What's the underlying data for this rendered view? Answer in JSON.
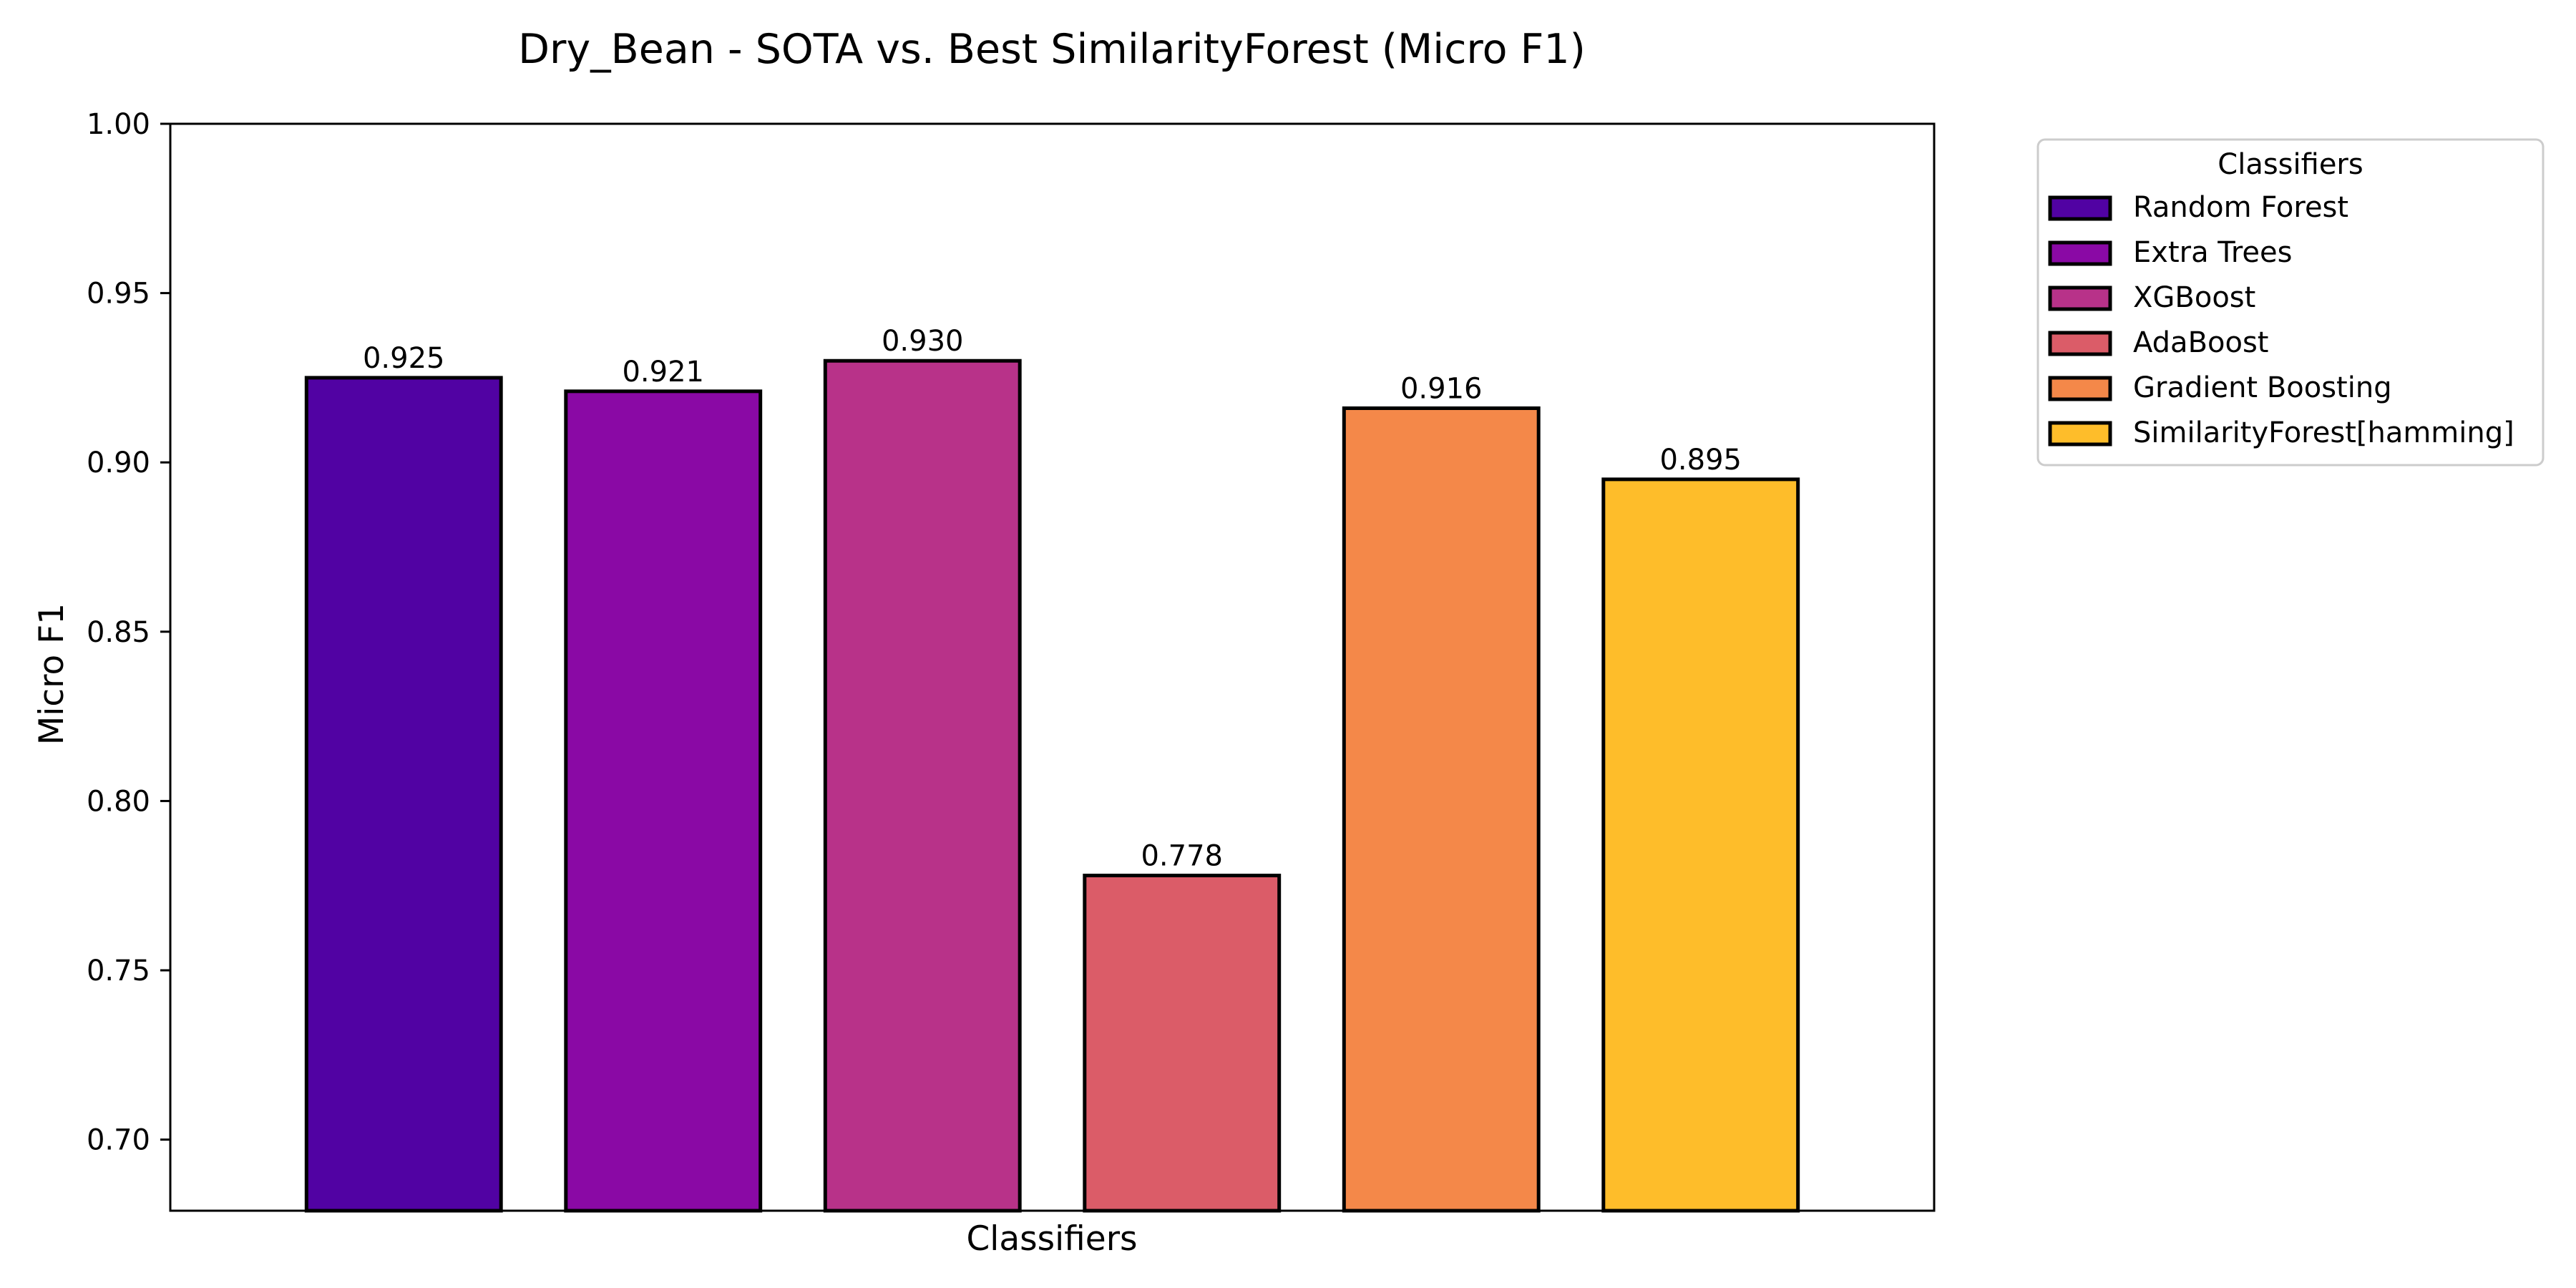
{
  "chart_data": {
    "type": "bar",
    "title": "Dry_Bean - SOTA vs. Best SimilarityForest (Micro F1)",
    "xlabel": "Classifiers",
    "ylabel": "Micro F1",
    "ylim": [
      0.679,
      1.0
    ],
    "yticks": [
      0.7,
      0.75,
      0.8,
      0.85,
      0.9,
      0.95,
      1.0
    ],
    "ytick_labels": [
      "0.70",
      "0.75",
      "0.80",
      "0.85",
      "0.90",
      "0.95",
      "1.00"
    ],
    "grid": false,
    "legend": {
      "title": "Classifiers",
      "placement": "outside-top-right"
    },
    "categories": [
      "Random Forest",
      "Extra Trees",
      "XGBoost",
      "AdaBoost",
      "Gradient Boosting",
      "SimilarityForest[hamming]"
    ],
    "values": [
      0.925,
      0.921,
      0.93,
      0.778,
      0.916,
      0.895
    ],
    "value_labels": [
      "0.925",
      "0.921",
      "0.930",
      "0.778",
      "0.916",
      "0.895"
    ],
    "colors": [
      "#5102a3",
      "#8a09a5",
      "#b83289",
      "#db5c68",
      "#f48849",
      "#febd2a"
    ],
    "edge_color": "#000000"
  }
}
